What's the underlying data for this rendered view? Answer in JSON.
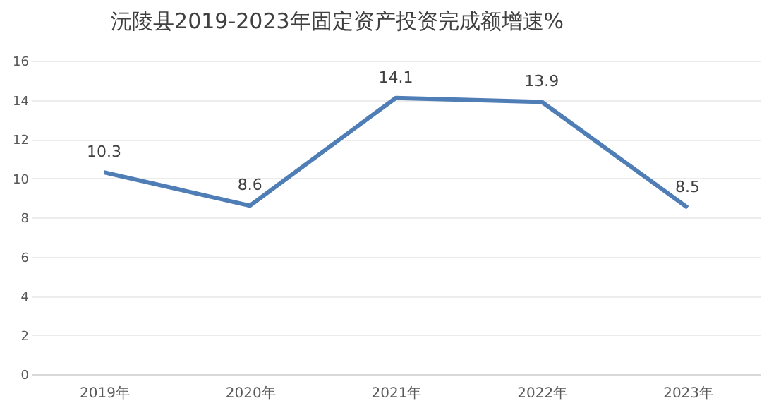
{
  "chart_data": {
    "type": "line",
    "title": "沅陵县2019-2023年固定资产投资完成额增速%",
    "categories": [
      "2019年",
      "2020年",
      "2021年",
      "2022年",
      "2023年"
    ],
    "series": [
      {
        "color": "#4f7db5",
        "values": [
          10.3,
          8.6,
          14.1,
          13.9,
          8.5
        ]
      }
    ],
    "ylim": [
      0,
      16
    ],
    "yticks": [
      0,
      2,
      4,
      6,
      8,
      10,
      12,
      14,
      16
    ],
    "grid": "y",
    "data_labels": true,
    "marker": "none",
    "line_style": "solid",
    "legend": false
  }
}
